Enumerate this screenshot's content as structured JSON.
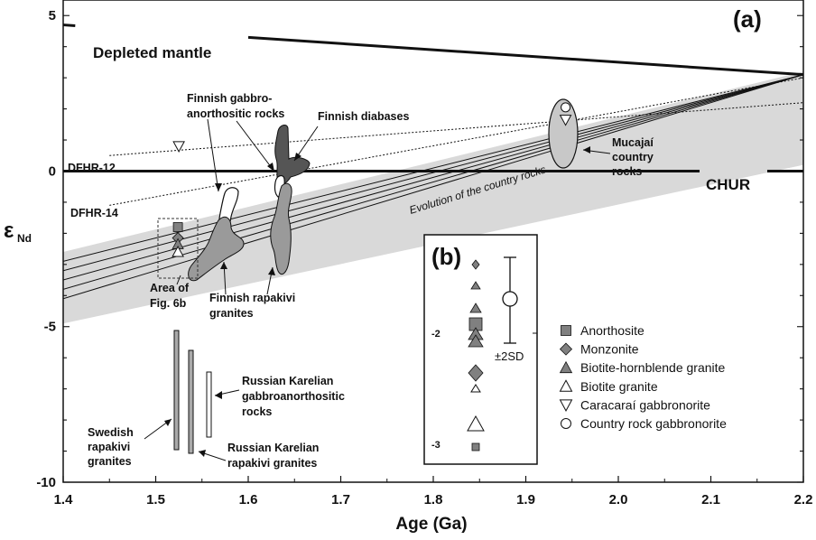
{
  "chart_data": {
    "type": "scatter",
    "panel_label": "(a)",
    "xlabel": "Age (Ga)",
    "ylabel_main": "ε",
    "ylabel_sub": "Nd",
    "xlim": [
      1.4,
      2.2
    ],
    "ylim": [
      -10,
      5.5
    ],
    "x_ticks": [
      "1.4",
      "1.5",
      "1.6",
      "1.7",
      "1.8",
      "1.9",
      "2.0",
      "2.1",
      "2.2"
    ],
    "y_ticks": [
      "5",
      "0",
      "-5",
      "-10"
    ],
    "reference_lines": {
      "depleted_mantle": {
        "label": "Depleted mantle",
        "points": [
          [
            1.4,
            4.7
          ],
          [
            2.2,
            3.1
          ]
        ]
      },
      "chur": {
        "label": "CHUR",
        "value": 0
      }
    },
    "evolution_band": {
      "label": "Evolution of the country rocks",
      "upper": [
        [
          1.4,
          -2.6
        ],
        [
          2.2,
          3.2
        ]
      ],
      "lower": [
        [
          1.4,
          -4.9
        ],
        [
          2.2,
          0.2
        ]
      ]
    },
    "evolution_lines": [
      [
        [
          1.4,
          -2.9
        ],
        [
          2.2,
          3.1
        ]
      ],
      [
        [
          1.4,
          -3.2
        ],
        [
          2.2,
          3.1
        ]
      ],
      [
        [
          1.4,
          -3.5
        ],
        [
          2.2,
          3.1
        ]
      ],
      [
        [
          1.4,
          -3.8
        ],
        [
          2.2,
          3.1
        ]
      ],
      [
        [
          1.4,
          -4.1
        ],
        [
          2.2,
          3.1
        ]
      ]
    ],
    "dfhr_lines": [
      {
        "label": "DFHR-12",
        "points": [
          [
            1.45,
            0.5
          ],
          [
            2.2,
            2.2
          ]
        ]
      },
      {
        "label": "DFHR-14",
        "points": [
          [
            1.45,
            -1.1
          ],
          [
            2.2,
            3.0
          ]
        ]
      }
    ],
    "series": [
      {
        "name": "Anorthosite",
        "marker": "square-gray",
        "points": [
          [
            1.524,
            -1.8
          ]
        ]
      },
      {
        "name": "Monzonite",
        "marker": "diamond-gray",
        "points": [
          [
            1.524,
            -2.15
          ]
        ]
      },
      {
        "name": "Biotite-hornblende granite",
        "marker": "triangle-up-gray",
        "points": [
          [
            1.524,
            -2.35
          ]
        ]
      },
      {
        "name": "Biotite granite",
        "marker": "triangle-up-open",
        "points": [
          [
            1.524,
            -2.6
          ]
        ]
      },
      {
        "name": "Caracaraí gabbronorite",
        "marker": "triangle-down-open",
        "points": [
          [
            1.525,
            0.8
          ]
        ]
      },
      {
        "name": "Country rock gabbronorite",
        "marker": "circle-open",
        "points": [
          [
            1.943,
            2.05
          ]
        ]
      }
    ],
    "field_labels": {
      "finnish_gabbro": [
        "Finnish gabbro-",
        "anorthositic rocks"
      ],
      "finnish_diabases": [
        "Finnish diabases"
      ],
      "finnish_rapakivi": [
        "Finnish rapakivi",
        "granites"
      ],
      "area_fig": [
        "Area of",
        "Fig. 6b"
      ],
      "mucajai": [
        "Mucajaí",
        "country",
        "rocks"
      ],
      "swedish": [
        "Swedish",
        "rapakivi",
        "granites"
      ],
      "russian_rapakivi": [
        "Russian Karelian",
        "rapakivi granites"
      ],
      "russian_gabbro": [
        "Russian Karelian",
        "gabbroanorthositic",
        "rocks"
      ]
    },
    "inset": {
      "label": "(b)",
      "y_ticks": [
        "-2",
        "-3"
      ],
      "sd_label": "±2SD"
    },
    "legend": {
      "placement": "bottom-right",
      "items": [
        {
          "label": "Anorthosite",
          "marker": "square-gray"
        },
        {
          "label": "Monzonite",
          "marker": "diamond-gray"
        },
        {
          "label": "Biotite-hornblende granite",
          "marker": "triangle-up-gray"
        },
        {
          "label": "Biotite granite",
          "marker": "triangle-up-open"
        },
        {
          "label": "Caracaraí gabbronorite",
          "marker": "triangle-down-open"
        },
        {
          "label": "Country rock gabbronorite",
          "marker": "circle-open"
        }
      ]
    },
    "colors": {
      "band": "#d9d9d9",
      "marker_fill": "#808080",
      "field_dark": "#555555",
      "field_mid": "#9a9a9a",
      "field_light": "#c8c8c8",
      "line": "#111111"
    }
  }
}
